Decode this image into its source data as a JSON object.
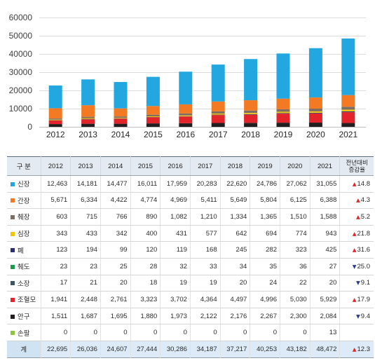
{
  "chart_data": {
    "type": "bar",
    "stacked": true,
    "categories": [
      "2012",
      "2013",
      "2014",
      "2015",
      "2016",
      "2017",
      "2018",
      "2019",
      "2020",
      "2021"
    ],
    "ylim": [
      0,
      60000
    ],
    "yticks": [
      0,
      10000,
      20000,
      30000,
      40000,
      50000,
      60000
    ],
    "grid": true,
    "series": [
      {
        "name": "신장",
        "color": "#22a7e0",
        "values": [
          12463,
          14181,
          14477,
          16011,
          17959,
          20283,
          22620,
          24786,
          27062,
          31055
        ]
      },
      {
        "name": "간장",
        "color": "#f37a22",
        "values": [
          5671,
          6334,
          4422,
          4774,
          4969,
          5411,
          5649,
          5804,
          6125,
          6388
        ]
      },
      {
        "name": "췌장",
        "color": "#7d6e62",
        "values": [
          603,
          715,
          766,
          890,
          1082,
          1210,
          1334,
          1365,
          1510,
          1588
        ]
      },
      {
        "name": "심장",
        "color": "#f6c400",
        "values": [
          343,
          433,
          342,
          400,
          431,
          577,
          642,
          694,
          774,
          943
        ]
      },
      {
        "name": "폐",
        "color": "#2c2f73",
        "values": [
          123,
          194,
          99,
          120,
          119,
          168,
          245,
          282,
          323,
          425
        ]
      },
      {
        "name": "췌도",
        "color": "#1c9a49",
        "values": [
          23,
          23,
          25,
          28,
          32,
          33,
          34,
          35,
          36,
          27
        ]
      },
      {
        "name": "소장",
        "color": "#3b5862",
        "values": [
          17,
          21,
          20,
          18,
          19,
          19,
          20,
          24,
          22,
          20
        ]
      },
      {
        "name": "조혈모",
        "color": "#e4242b",
        "values": [
          1941,
          2448,
          2761,
          3323,
          3702,
          4364,
          4497,
          4996,
          5030,
          5929
        ]
      },
      {
        "name": "안구",
        "color": "#231f20",
        "values": [
          1511,
          1687,
          1695,
          1880,
          1973,
          2122,
          2176,
          2267,
          2300,
          2084
        ]
      },
      {
        "name": "손팔",
        "color": "#8dc63f",
        "values": [
          0,
          0,
          0,
          0,
          0,
          0,
          0,
          0,
          0,
          13
        ]
      }
    ]
  },
  "table": {
    "header": {
      "category": "구 분",
      "years": [
        "2012",
        "2013",
        "2014",
        "2015",
        "2016",
        "2017",
        "2018",
        "2019",
        "2020",
        "2021"
      ],
      "change": [
        "전년대비",
        "증감율"
      ]
    },
    "rows": [
      {
        "values": [
          "12,463",
          "14,181",
          "14,477",
          "16,011",
          "17,959",
          "20,283",
          "22,620",
          "24,786",
          "27,062",
          "31,055"
        ],
        "change": {
          "arrow": "▲",
          "value": "14.8"
        }
      },
      {
        "values": [
          "5,671",
          "6,334",
          "4,422",
          "4,774",
          "4,969",
          "5,411",
          "5,649",
          "5,804",
          "6,125",
          "6,388"
        ],
        "change": {
          "arrow": "▲",
          "value": "4.3"
        }
      },
      {
        "values": [
          "603",
          "715",
          "766",
          "890",
          "1,082",
          "1,210",
          "1,334",
          "1,365",
          "1,510",
          "1,588"
        ],
        "change": {
          "arrow": "▲",
          "value": "5.2"
        }
      },
      {
        "values": [
          "343",
          "433",
          "342",
          "400",
          "431",
          "577",
          "642",
          "694",
          "774",
          "943"
        ],
        "change": {
          "arrow": "▲",
          "value": "21.8"
        }
      },
      {
        "values": [
          "123",
          "194",
          "99",
          "120",
          "119",
          "168",
          "245",
          "282",
          "323",
          "425"
        ],
        "change": {
          "arrow": "▲",
          "value": "31.6"
        }
      },
      {
        "values": [
          "23",
          "23",
          "25",
          "28",
          "32",
          "33",
          "34",
          "35",
          "36",
          "27"
        ],
        "change": {
          "arrow": "▼",
          "value": "25.0"
        }
      },
      {
        "values": [
          "17",
          "21",
          "20",
          "18",
          "19",
          "19",
          "20",
          "24",
          "22",
          "20"
        ],
        "change": {
          "arrow": "▼",
          "value": "9.1"
        }
      },
      {
        "values": [
          "1,941",
          "2,448",
          "2,761",
          "3,323",
          "3,702",
          "4,364",
          "4,497",
          "4,996",
          "5,030",
          "5,929"
        ],
        "change": {
          "arrow": "▲",
          "value": "17.9"
        }
      },
      {
        "values": [
          "1,511",
          "1,687",
          "1,695",
          "1,880",
          "1,973",
          "2,122",
          "2,176",
          "2,267",
          "2,300",
          "2,084"
        ],
        "change": {
          "arrow": "▼",
          "value": "9.4"
        }
      },
      {
        "values": [
          "0",
          "0",
          "0",
          "0",
          "0",
          "0",
          "0",
          "0",
          "0",
          "13"
        ]
      }
    ],
    "total": {
      "label": "계",
      "values": [
        "22,695",
        "26,036",
        "24,607",
        "27,444",
        "30,286",
        "34,187",
        "37,217",
        "40,253",
        "43,182",
        "48,472"
      ],
      "change": {
        "arrow": "▲",
        "value": "12.3"
      }
    },
    "colors": {
      "increase": "#e3262b",
      "decrease": "#2b3a8f"
    }
  }
}
